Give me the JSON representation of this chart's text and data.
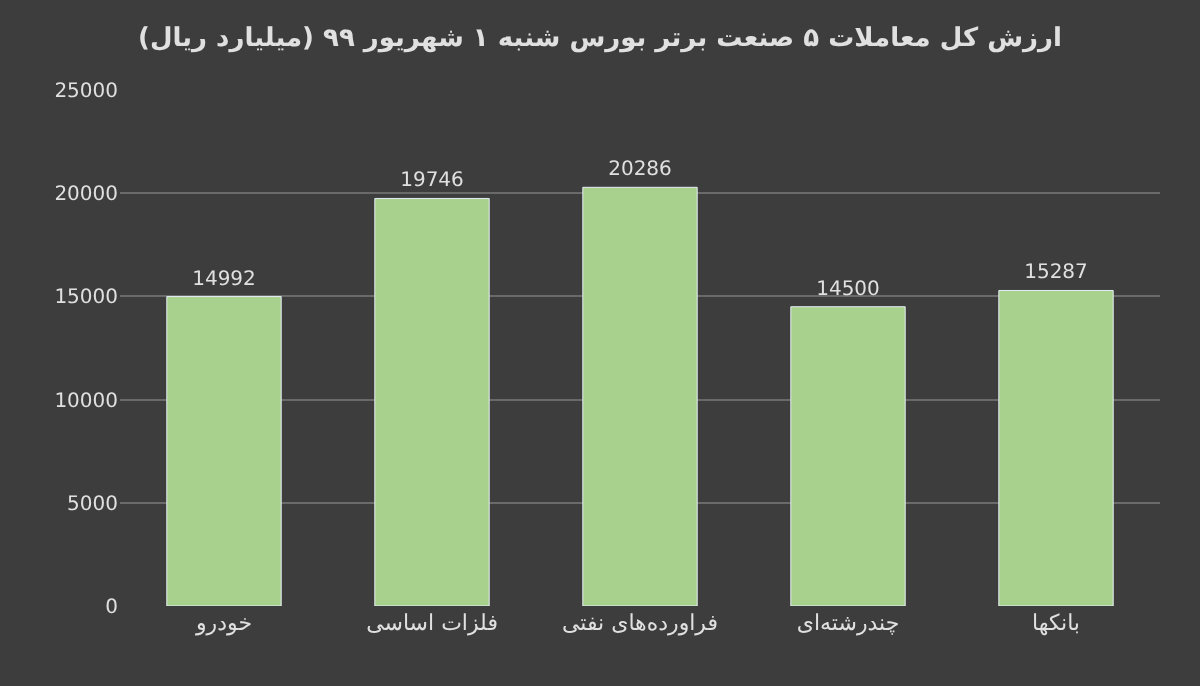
{
  "chart_data": {
    "type": "bar",
    "title": "ارزش کل معاملات ۵ صنعت برتر بورس شنبه ۱ شهریور ۹۹ (میلیارد ریال)",
    "categories": [
      "خودرو",
      "فلزات اساسی",
      "فراورده‌های نفتی",
      "چندرشته‌ای",
      "بانکها"
    ],
    "values": [
      14992,
      19746,
      20286,
      14500,
      15287
    ],
    "color": "#a9d18e",
    "ylim": [
      0,
      25000
    ],
    "yticks": [
      0,
      5000,
      10000,
      15000,
      20000,
      25000
    ],
    "grid": "y",
    "data_labels": true
  }
}
